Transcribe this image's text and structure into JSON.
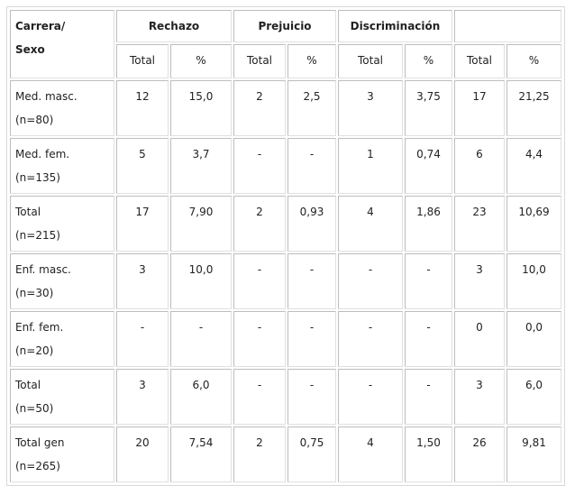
{
  "header": {
    "first": [
      "Carrera/",
      "Sexo"
    ],
    "groups": [
      "Rechazo",
      "Prejuicio",
      "Discriminación",
      ""
    ],
    "sub": [
      "Total",
      "%",
      "Total",
      "%",
      "Total",
      "%",
      "Total",
      "%"
    ]
  },
  "rows": [
    {
      "label": [
        "Med. masc.",
        "(n=80)"
      ],
      "cells": [
        "12",
        "15,0",
        "2",
        "2,5",
        "3",
        "3,75",
        "17",
        "21,25"
      ]
    },
    {
      "label": [
        "Med. fem.",
        "(n=135)"
      ],
      "cells": [
        "5",
        "3,7",
        "-",
        "-",
        "1",
        "0,74",
        "6",
        "4,4"
      ]
    },
    {
      "label": [
        "Total",
        "(n=215)"
      ],
      "cells": [
        "17",
        "7,90",
        "2",
        "0,93",
        "4",
        "1,86",
        "23",
        "10,69"
      ]
    },
    {
      "label": [
        "Enf. masc.",
        "(n=30)"
      ],
      "cells": [
        "3",
        "10,0",
        "-",
        "-",
        "-",
        "-",
        "3",
        "10,0"
      ]
    },
    {
      "label": [
        "Enf. fem.",
        "(n=20)"
      ],
      "cells": [
        "-",
        "-",
        "-",
        "-",
        "-",
        "-",
        "0",
        "0,0"
      ]
    },
    {
      "label": [
        "Total",
        "(n=50)"
      ],
      "cells": [
        "3",
        "6,0",
        "-",
        "-",
        "-",
        "-",
        "3",
        "6,0"
      ]
    },
    {
      "label": [
        "Total gen",
        "(n=265)"
      ],
      "cells": [
        "20",
        "7,54",
        "2",
        "0,75",
        "4",
        "1,50",
        "26",
        "9,81"
      ]
    }
  ]
}
